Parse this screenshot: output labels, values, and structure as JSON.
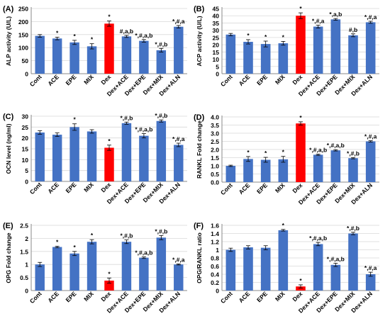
{
  "colors": {
    "bar": "#4472C4",
    "dex": "#FF0000",
    "axis": "#888888",
    "grid": "#d9d9d9",
    "text": "#000000"
  },
  "chart_data": [
    {
      "panel": "(A)",
      "type": "bar",
      "ylabel": "ALP activity (U/L)",
      "ylim": [
        0,
        250
      ],
      "yticks": [
        0,
        50,
        100,
        150,
        200,
        250
      ],
      "categories": [
        "Cont",
        "ACE",
        "EPE",
        "MIX",
        "Dex",
        "Dex+ACE",
        "Dex+EPE",
        "Dex+MIX",
        "Dex+ALN"
      ],
      "values": [
        145,
        135,
        120,
        105,
        192,
        143,
        126,
        90,
        180
      ],
      "errors": [
        5,
        5,
        8,
        10,
        10,
        4,
        5,
        7,
        5
      ],
      "labels": [
        "",
        "*",
        "*",
        "*",
        "*",
        "#,a,b",
        "*,#,a,b",
        "*,#,b",
        "*,#,a"
      ],
      "highlight": [
        4
      ],
      "grid": true,
      "legend": "none"
    },
    {
      "panel": "(B)",
      "type": "bar",
      "ylabel": "ACP activity (U/L)",
      "ylim": [
        0,
        45
      ],
      "yticks": [
        0,
        5,
        10,
        15,
        20,
        25,
        30,
        35,
        40,
        45
      ],
      "categories": [
        "Cont",
        "ACE",
        "EPE",
        "MIX",
        "Dex",
        "Dex+ACE",
        "Dex+EPE",
        "Dex+MIX",
        "Dex+ALN"
      ],
      "values": [
        27,
        22,
        20.5,
        21,
        40,
        32.5,
        37.5,
        26.5,
        35.5
      ],
      "errors": [
        0.8,
        1.5,
        2.0,
        1.3,
        2.0,
        1.0,
        0.6,
        1.0,
        0.7
      ],
      "labels": [
        "",
        "*",
        "*",
        "*",
        "*",
        "*,#,a",
        "*,a,b",
        "#,b",
        "*,#,a"
      ],
      "highlight": [
        4
      ],
      "grid": true,
      "legend": "none"
    },
    {
      "panel": "(C)",
      "type": "bar",
      "ylabel": "OCN level (ng/ml)",
      "ylim": [
        0,
        30
      ],
      "yticks": [
        0,
        5,
        10,
        15,
        20,
        25,
        30
      ],
      "categories": [
        "Cont",
        "ACE",
        "EPE",
        "MIX",
        "Dex",
        "Dex+ACE",
        "Dex+EPE",
        "Dex+MIX",
        "Dex+ALN"
      ],
      "values": [
        22.5,
        21.5,
        25,
        23,
        15.5,
        26.8,
        21,
        27.8,
        16.8
      ],
      "errors": [
        0.8,
        0.8,
        1.5,
        0.8,
        1.2,
        0.5,
        1.0,
        0.5,
        0.8
      ],
      "labels": [
        "",
        "",
        "*",
        "",
        "*",
        "*,#,b",
        "*,#,a,b",
        "*,#,b",
        "*,#,a"
      ],
      "highlight": [
        4
      ],
      "grid": true,
      "legend": "none"
    },
    {
      "panel": "(D)",
      "type": "bar",
      "ylabel": "RANKL Fold change",
      "ylim": [
        0,
        4
      ],
      "yticks": [
        0,
        0.5,
        1,
        1.5,
        2,
        2.5,
        3,
        3.5,
        4
      ],
      "tick_labels": [
        "0.0",
        "0.5",
        "1.0",
        "1.5",
        "2.0",
        "2.5",
        "3.0",
        "3.5",
        "4.0"
      ],
      "categories": [
        "Cont",
        "ACE",
        "EPE",
        "MIX",
        "Dex",
        "Dex+ACE",
        "Dex+EPE",
        "Dex+MIX",
        "Dex+ALN"
      ],
      "values": [
        1.0,
        1.42,
        1.37,
        1.4,
        3.6,
        1.68,
        1.95,
        1.47,
        2.5
      ],
      "errors": [
        0.04,
        0.15,
        0.15,
        0.18,
        0.1,
        0.04,
        0.04,
        0.04,
        0.04
      ],
      "labels": [
        "",
        "*",
        "*",
        "*",
        "*",
        "*,#,a,b",
        "*,#,a,b",
        "*,#,b",
        "*,#,a"
      ],
      "highlight": [
        4
      ],
      "grid": true,
      "legend": "none"
    },
    {
      "panel": "(E)",
      "type": "bar",
      "ylabel": "OPG Fold change",
      "ylim": [
        0,
        2.5
      ],
      "yticks": [
        0,
        0.5,
        1,
        1.5,
        2,
        2.5
      ],
      "tick_labels": [
        "0",
        "0.5",
        "1",
        "1.5",
        "2",
        "2.5"
      ],
      "categories": [
        "Cont",
        "ACE",
        "EPE",
        "MIX",
        "Dex",
        "Dex+ACE",
        "Dex+EPE",
        "Dex+MIX",
        "Dex+ALN"
      ],
      "values": [
        1.0,
        1.67,
        1.42,
        1.87,
        0.38,
        1.87,
        1.26,
        2.03,
        1.0
      ],
      "errors": [
        0.08,
        0.03,
        0.08,
        0.08,
        0.1,
        0.07,
        0.03,
        0.08,
        0.02
      ],
      "labels": [
        "",
        "*",
        "*",
        "*",
        "*",
        "*,#,b",
        "*,#,a,b",
        "*,#,b",
        "*,#,a"
      ],
      "highlight": [
        4
      ],
      "grid": true,
      "legend": "none"
    },
    {
      "panel": "(F)",
      "type": "bar",
      "ylabel": "OPG/RANKL ratio",
      "ylim": [
        0,
        1.6
      ],
      "yticks": [
        0,
        0.2,
        0.4,
        0.6,
        0.8,
        1.0,
        1.2,
        1.4,
        1.6
      ],
      "tick_labels": [
        "0",
        "0.2",
        "0.4",
        "0.6",
        "0.8",
        "1",
        "1.2",
        "1.4",
        "1.6"
      ],
      "categories": [
        "Cont",
        "ACE",
        "EPE",
        "MIX",
        "Dex",
        "Dex+ACE",
        "Dex+EPE",
        "Dex+MIX",
        "Dex+ALN"
      ],
      "values": [
        1.0,
        1.06,
        1.05,
        1.48,
        0.1,
        1.14,
        0.63,
        1.4,
        0.4
      ],
      "errors": [
        0.04,
        0.04,
        0.05,
        0.02,
        0.04,
        0.04,
        0.04,
        0.03,
        0.05
      ],
      "labels": [
        "",
        "",
        "",
        "*",
        "*",
        "*,#,a,b",
        "*,#,a,b",
        "*,#,b",
        "*,#,a"
      ],
      "highlight": [
        4
      ],
      "grid": true,
      "legend": "none"
    }
  ]
}
